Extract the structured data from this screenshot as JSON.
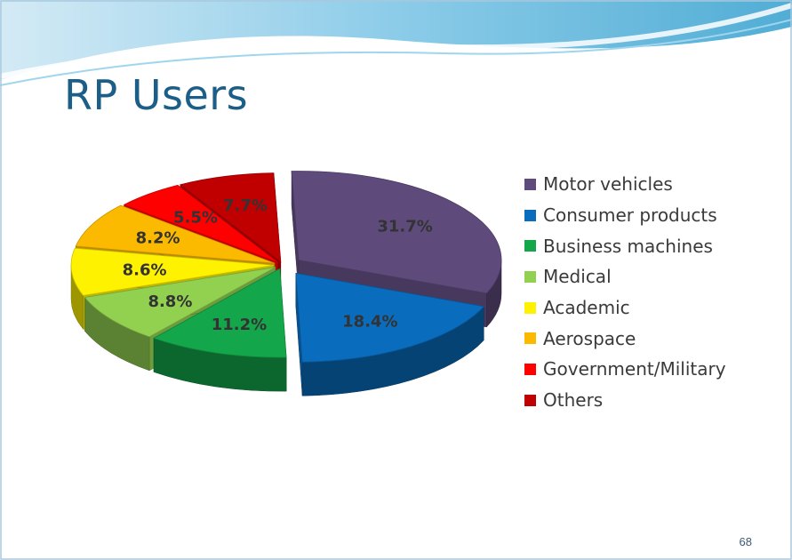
{
  "slide": {
    "title": "RP Users",
    "page_number": "68"
  },
  "chart_data": {
    "type": "pie",
    "style": "3d-exploded",
    "title": "",
    "legend_position": "right",
    "categories": [
      "Motor vehicles",
      "Consumer products",
      "Business machines",
      "Medical",
      "Academic",
      "Aerospace",
      "Government/Military",
      "Others"
    ],
    "values": [
      31.7,
      18.4,
      11.2,
      8.8,
      8.6,
      8.2,
      5.5,
      7.7
    ],
    "labels": [
      "31.7%",
      "18.4%",
      "11.2%",
      "8.8%",
      "8.6%",
      "8.2%",
      "5.5%",
      "7.7%"
    ],
    "colors": [
      "#5f4a7c",
      "#0a6cbd",
      "#14a64a",
      "#92d050",
      "#fff200",
      "#fbb900",
      "#ff0000",
      "#c00000"
    ]
  }
}
